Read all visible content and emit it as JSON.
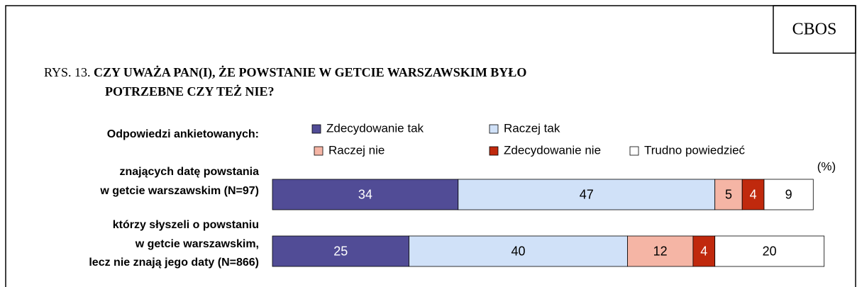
{
  "chart_data": {
    "type": "stacked-bar-horizontal",
    "source_box": "CBOS",
    "figure_label": "RYS. 13.",
    "title": [
      "CZY UWAŻA PAN(I), ŻE POWSTANIE W GETCIE WARSZAWSKIM BYŁO",
      "POTRZEBNE CZY TEŻ NIE?"
    ],
    "legend_title": "Odpowiedzi ankietowanych:",
    "unit_label": "(%)",
    "categories": [
      [
        "znających datę powstania",
        "w getcie warszawskim (N=97)"
      ],
      [
        "którzy słyszeli o powstaniu",
        "w getcie warszawskim,",
        "lecz nie znają jego daty (N=866)"
      ]
    ],
    "series": [
      {
        "name": "Zdecydowanie tak",
        "color": "#514c96",
        "values": [
          34,
          25
        ]
      },
      {
        "name": "Raczej tak",
        "color": "#d0e1f8",
        "values": [
          47,
          40
        ]
      },
      {
        "name": "Raczej nie",
        "color": "#f5b5a5",
        "values": [
          5,
          12
        ]
      },
      {
        "name": "Zdecydowanie nie",
        "color": "#c0290d",
        "values": [
          4,
          4
        ]
      },
      {
        "name": "Trudno powiedzieć",
        "color": "#ffffff",
        "values": [
          9,
          20
        ]
      }
    ],
    "xlim": [
      0,
      100
    ]
  }
}
